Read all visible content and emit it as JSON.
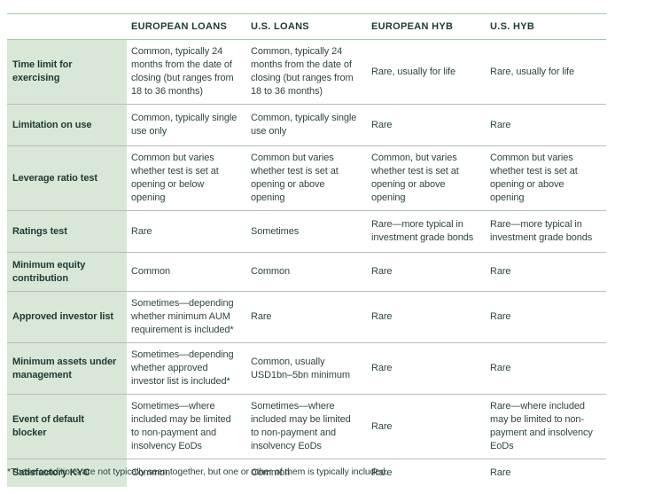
{
  "table": {
    "columns": {
      "c1": "EUROPEAN LOANS",
      "c2": "U.S. LOANS",
      "c3": "EUROPEAN HYB",
      "c4": "U.S. HYB"
    },
    "rows": [
      {
        "label": "Time limit for exercising",
        "cells": [
          "Common, typically 24 months from the date of closing (but ranges from 18 to 36 months)",
          "Common, typically 24 months from the date of closing (but ranges from 18 to 36 months)",
          "Rare, usually for life",
          "Rare, usually for life"
        ]
      },
      {
        "label": "Limitation on use",
        "cells": [
          "Common, typically single use only",
          "Common, typically single use only",
          "Rare",
          "Rare"
        ]
      },
      {
        "label": "Leverage ratio test",
        "cells": [
          "Common but varies whether test is set at opening or below opening",
          "Common but varies whether test is set at opening or above opening",
          "Common, but varies whether test is set at opening or above opening",
          "Common but varies whether test is set at opening or above opening"
        ]
      },
      {
        "label": "Ratings test",
        "cells": [
          "Rare",
          "Sometimes",
          "Rare—more typical in investment grade bonds",
          "Rare—more typical in investment grade bonds"
        ]
      },
      {
        "label": "Minimum equity contribution",
        "cells": [
          "Common",
          "Common",
          "Rare",
          "Rare"
        ]
      },
      {
        "label": "Approved investor list",
        "cells": [
          "Sometimes—depending whether minimum AUM requirement is included*",
          "Rare",
          "Rare",
          "Rare"
        ]
      },
      {
        "label": "Minimum assets under management",
        "cells": [
          "Sometimes—depending whether approved investor list is included*",
          "Common, usually USD1bn–5bn minimum",
          "Rare",
          "Rare"
        ]
      },
      {
        "label": "Event of default blocker",
        "cells": [
          "Sometimes—where included may be limited to non-payment and insolvency EoDs",
          "Sometimes—where included may be limited to non-payment and insolvency EoDs",
          "Rare",
          "Rare—where included may be limited to non-payment and insolvency EoDs"
        ]
      },
      {
        "label": "Satisfactory KYC",
        "cells": [
          "Common",
          "Common",
          "Rare",
          "Rare"
        ]
      }
    ],
    "footnote": "*These conditions are not typically seen together, but one or other of them is typically included."
  },
  "colors": {
    "label_background": "#d8e7d6",
    "header_rule": "#9fc9a4",
    "row_rule": "#b6bfba",
    "heading_text": "#1d3a33",
    "body_text": "#2e463e"
  }
}
